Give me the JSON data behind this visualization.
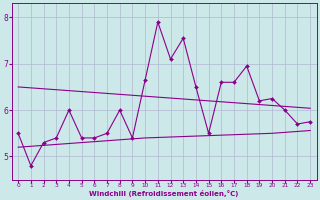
{
  "x": [
    0,
    1,
    2,
    3,
    4,
    5,
    6,
    7,
    8,
    9,
    10,
    11,
    12,
    13,
    14,
    15,
    16,
    17,
    18,
    19,
    20,
    21,
    22,
    23
  ],
  "line1": [
    5.5,
    4.8,
    5.3,
    5.4,
    6.0,
    5.4,
    5.4,
    5.5,
    6.0,
    5.4,
    6.65,
    7.9,
    7.1,
    7.55,
    6.5,
    5.5,
    6.6,
    6.6,
    6.95,
    6.2,
    6.25,
    6.0,
    5.7,
    5.75
  ],
  "line2": [
    6.5,
    6.48,
    6.46,
    6.44,
    6.42,
    6.4,
    6.38,
    6.36,
    6.34,
    6.32,
    6.3,
    6.28,
    6.26,
    6.24,
    6.22,
    6.2,
    6.18,
    6.16,
    6.14,
    6.12,
    6.1,
    6.08,
    6.06,
    6.04
  ],
  "line3": [
    5.2,
    5.22,
    5.24,
    5.26,
    5.28,
    5.3,
    5.32,
    5.34,
    5.36,
    5.38,
    5.4,
    5.41,
    5.42,
    5.43,
    5.44,
    5.45,
    5.46,
    5.47,
    5.48,
    5.49,
    5.5,
    5.52,
    5.54,
    5.56
  ],
  "color": "#8b008b",
  "bg_color": "#cce8e8",
  "grid_color": "#b0b8d0",
  "xlabel": "Windchill (Refroidissement éolien,°C)",
  "ylim": [
    4.5,
    8.3
  ],
  "xlim": [
    -0.5,
    23.5
  ],
  "yticks": [
    5,
    6,
    7,
    8
  ],
  "xticks": [
    0,
    1,
    2,
    3,
    4,
    5,
    6,
    7,
    8,
    9,
    10,
    11,
    12,
    13,
    14,
    15,
    16,
    17,
    18,
    19,
    20,
    21,
    22,
    23
  ]
}
